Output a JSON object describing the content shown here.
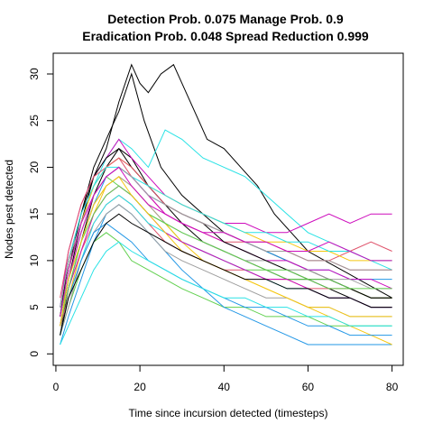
{
  "chart_data": {
    "type": "line",
    "title_line1": "Detection Prob. 0.075 Manage Prob. 0.9",
    "title_line2": "Eradication Prob. 0.048 Spread Reduction 0.999",
    "xlabel": "Time since incursion detected (timesteps)",
    "ylabel": "Nodes pest detected",
    "xlim": [
      1,
      80
    ],
    "ylim": [
      0,
      31
    ],
    "xticks": [
      0,
      20,
      40,
      60,
      80
    ],
    "yticks": [
      0,
      5,
      10,
      15,
      20,
      25,
      30
    ],
    "grid": false,
    "legend": "none",
    "palette": [
      "#000000",
      "#DF536B",
      "#61D04F",
      "#2297E6",
      "#28E2E5",
      "#CD0BBC",
      "#F5C710",
      "#9E9E9E"
    ],
    "series": [
      {
        "color": "#000000",
        "x": [
          1,
          3,
          6,
          9,
          12,
          15,
          18,
          20,
          22,
          25,
          28,
          30,
          33,
          36,
          40,
          44,
          48,
          52,
          56,
          60,
          64,
          68,
          72,
          76,
          80
        ],
        "y": [
          3,
          8,
          14,
          19,
          22,
          27,
          31,
          29,
          28,
          30,
          31,
          29,
          26,
          23,
          22,
          20,
          18,
          15,
          13,
          11,
          10,
          9,
          8,
          7,
          6
        ]
      },
      {
        "color": "#000000",
        "x": [
          1,
          3,
          6,
          9,
          12,
          15,
          18,
          21,
          25,
          30,
          35,
          40,
          45,
          50,
          55,
          60,
          65,
          70,
          75,
          80
        ],
        "y": [
          4,
          9,
          15,
          20,
          23,
          26,
          30,
          25,
          20,
          17,
          15,
          13,
          12,
          11,
          10,
          9,
          8,
          7,
          6,
          6
        ]
      },
      {
        "color": "#000000",
        "x": [
          1,
          3,
          6,
          9,
          12,
          15,
          18,
          22,
          26,
          30,
          35,
          40,
          45,
          50,
          55,
          60,
          65,
          70,
          75,
          80
        ],
        "y": [
          2,
          7,
          12,
          17,
          20,
          22,
          21,
          18,
          16,
          14,
          12,
          11,
          10,
          9,
          8,
          8,
          7,
          6,
          5,
          5
        ]
      },
      {
        "color": "#DF536B",
        "x": [
          1,
          3,
          6,
          9,
          12,
          15,
          18,
          22,
          26,
          30,
          35,
          40,
          45,
          50,
          55,
          60,
          65,
          70,
          75,
          80
        ],
        "y": [
          5,
          10,
          14,
          18,
          20,
          21,
          19,
          17,
          15,
          14,
          13,
          12,
          12,
          11,
          11,
          10,
          10,
          11,
          12,
          11
        ]
      },
      {
        "color": "#DF536B",
        "x": [
          1,
          3,
          6,
          9,
          12,
          15,
          18,
          22,
          26,
          30,
          35,
          40,
          45,
          50,
          55,
          60,
          65,
          70,
          75,
          80
        ],
        "y": [
          3,
          6,
          11,
          14,
          16,
          17,
          16,
          14,
          12,
          11,
          10,
          9,
          9,
          8,
          8,
          7,
          7,
          7,
          6,
          6
        ]
      },
      {
        "color": "#61D04F",
        "x": [
          1,
          3,
          6,
          9,
          12,
          15,
          18,
          22,
          26,
          30,
          35,
          40,
          45,
          50,
          55,
          60,
          65,
          70,
          75,
          80
        ],
        "y": [
          2,
          5,
          9,
          12,
          13,
          12,
          10,
          9,
          8,
          7,
          6,
          5,
          5,
          4,
          4,
          4,
          3,
          3,
          3,
          3
        ]
      },
      {
        "color": "#61D04F",
        "x": [
          1,
          3,
          6,
          9,
          12,
          15,
          18,
          22,
          26,
          30,
          35,
          40,
          45,
          50,
          55,
          60,
          65,
          70,
          75,
          80
        ],
        "y": [
          4,
          8,
          13,
          17,
          19,
          18,
          17,
          15,
          14,
          12,
          11,
          10,
          9,
          9,
          8,
          8,
          7,
          7,
          6,
          6
        ]
      },
      {
        "color": "#2297E6",
        "x": [
          1,
          3,
          6,
          9,
          12,
          15,
          18,
          22,
          26,
          30,
          35,
          40,
          45,
          50,
          55,
          60,
          65,
          70,
          75,
          80
        ],
        "y": [
          1,
          4,
          8,
          12,
          15,
          16,
          15,
          13,
          11,
          9,
          7,
          5,
          4,
          3,
          2,
          1,
          1,
          1,
          1,
          1
        ]
      },
      {
        "color": "#2297E6",
        "x": [
          1,
          3,
          6,
          9,
          12,
          15,
          18,
          22,
          26,
          30,
          35,
          40,
          45,
          50,
          55,
          60,
          65,
          70,
          75,
          80
        ],
        "y": [
          3,
          7,
          12,
          16,
          19,
          20,
          19,
          17,
          16,
          15,
          14,
          13,
          12,
          11,
          10,
          9,
          9,
          8,
          8,
          8
        ]
      },
      {
        "color": "#28E2E5",
        "x": [
          1,
          3,
          6,
          9,
          12,
          15,
          18,
          22,
          26,
          30,
          35,
          40,
          45,
          50,
          55,
          60,
          65,
          70,
          75,
          80
        ],
        "y": [
          4,
          9,
          14,
          18,
          21,
          23,
          22,
          20,
          24,
          23,
          21,
          20,
          19,
          17,
          15,
          13,
          12,
          11,
          10,
          9
        ]
      },
      {
        "color": "#28E2E5",
        "x": [
          1,
          3,
          6,
          9,
          12,
          15,
          18,
          22,
          26,
          30,
          35,
          40,
          45,
          50,
          55,
          60,
          65,
          70,
          75,
          80
        ],
        "y": [
          2,
          6,
          10,
          14,
          16,
          17,
          16,
          14,
          13,
          12,
          11,
          10,
          9,
          8,
          7,
          7,
          6,
          6,
          5,
          5
        ]
      },
      {
        "color": "#CD0BBC",
        "x": [
          1,
          3,
          6,
          9,
          12,
          15,
          18,
          22,
          26,
          30,
          35,
          40,
          45,
          50,
          55,
          60,
          65,
          70,
          75,
          80
        ],
        "y": [
          5,
          11,
          16,
          19,
          21,
          23,
          21,
          19,
          17,
          16,
          15,
          14,
          14,
          13,
          13,
          14,
          15,
          14,
          15,
          15
        ]
      },
      {
        "color": "#CD0BBC",
        "x": [
          1,
          3,
          6,
          9,
          12,
          15,
          18,
          22,
          26,
          30,
          35,
          40,
          45,
          50,
          55,
          60,
          65,
          70,
          75,
          80
        ],
        "y": [
          3,
          8,
          13,
          17,
          19,
          20,
          19,
          17,
          15,
          14,
          13,
          12,
          11,
          10,
          10,
          9,
          9,
          8,
          8,
          7
        ]
      },
      {
        "color": "#F5C710",
        "x": [
          1,
          3,
          6,
          9,
          12,
          15,
          18,
          22,
          26,
          30,
          35,
          40,
          45,
          50,
          55,
          60,
          65,
          70,
          75,
          80
        ],
        "y": [
          2,
          6,
          11,
          15,
          18,
          19,
          18,
          16,
          14,
          12,
          10,
          9,
          8,
          7,
          6,
          5,
          4,
          3,
          2,
          1
        ]
      },
      {
        "color": "#F5C710",
        "x": [
          1,
          3,
          6,
          9,
          12,
          15,
          18,
          22,
          26,
          30,
          35,
          40,
          45,
          50,
          55,
          60,
          65,
          70,
          75,
          80
        ],
        "y": [
          4,
          9,
          14,
          18,
          20,
          21,
          20,
          18,
          17,
          16,
          15,
          14,
          13,
          12,
          12,
          11,
          11,
          10,
          10,
          10
        ]
      },
      {
        "color": "#9E9E9E",
        "x": [
          1,
          3,
          6,
          9,
          12,
          15,
          18,
          22,
          26,
          30,
          35,
          40,
          45,
          50,
          55,
          60,
          65,
          70,
          75,
          80
        ],
        "y": [
          3,
          7,
          12,
          16,
          18,
          19,
          18,
          16,
          14,
          13,
          12,
          11,
          10,
          10,
          9,
          9,
          8,
          8,
          7,
          7
        ]
      },
      {
        "color": "#9E9E9E",
        "x": [
          1,
          3,
          6,
          9,
          12,
          15,
          18,
          22,
          26,
          30,
          35,
          40,
          45,
          50,
          55,
          60,
          65,
          70,
          75,
          80
        ],
        "y": [
          2,
          5,
          10,
          13,
          15,
          16,
          15,
          13,
          11,
          10,
          9,
          8,
          7,
          6,
          6,
          5,
          5,
          4,
          4,
          4
        ]
      },
      {
        "color": "#000000",
        "x": [
          1,
          3,
          6,
          9,
          12,
          15,
          18,
          22,
          26,
          30,
          35,
          40,
          45,
          50,
          55,
          60,
          65,
          70,
          75,
          80
        ],
        "y": [
          4,
          10,
          15,
          19,
          21,
          22,
          20,
          18,
          16,
          15,
          14,
          12,
          11,
          10,
          9,
          8,
          8,
          7,
          6,
          6
        ]
      },
      {
        "color": "#DF536B",
        "x": [
          1,
          3,
          6,
          9,
          12,
          15,
          18,
          22,
          26,
          30,
          35,
          40,
          45,
          50,
          55,
          60,
          65,
          70,
          75,
          80
        ],
        "y": [
          6,
          11,
          16,
          19,
          20,
          21,
          20,
          18,
          16,
          15,
          14,
          13,
          12,
          12,
          11,
          10,
          10,
          9,
          9,
          9
        ]
      },
      {
        "color": "#2297E6",
        "x": [
          1,
          3,
          6,
          9,
          12,
          15,
          18,
          22,
          26,
          30,
          35,
          40,
          45,
          50,
          55,
          60,
          65,
          70,
          75,
          80
        ],
        "y": [
          2,
          6,
          10,
          13,
          14,
          13,
          12,
          10,
          9,
          8,
          7,
          6,
          5,
          5,
          4,
          3,
          3,
          2,
          2,
          2
        ]
      },
      {
        "color": "#28E2E5",
        "x": [
          1,
          3,
          6,
          9,
          12,
          15,
          18,
          22,
          26,
          30,
          35,
          40,
          45,
          50,
          55,
          60,
          65,
          70,
          75,
          80
        ],
        "y": [
          5,
          10,
          15,
          18,
          20,
          20,
          19,
          18,
          17,
          16,
          15,
          14,
          13,
          13,
          12,
          12,
          11,
          11,
          10,
          10
        ]
      },
      {
        "color": "#CD0BBC",
        "x": [
          1,
          3,
          6,
          9,
          12,
          15,
          18,
          22,
          26,
          30,
          35,
          40,
          45,
          50,
          55,
          60,
          65,
          70,
          75,
          80
        ],
        "y": [
          3,
          7,
          11,
          15,
          17,
          18,
          17,
          15,
          13,
          12,
          11,
          10,
          9,
          8,
          8,
          7,
          6,
          6,
          5,
          5
        ]
      },
      {
        "color": "#61D04F",
        "x": [
          1,
          3,
          6,
          9,
          12,
          15,
          18,
          22,
          26,
          30,
          35,
          40,
          45,
          50,
          55,
          60,
          65,
          70,
          75,
          80
        ],
        "y": [
          3,
          7,
          12,
          15,
          17,
          18,
          17,
          15,
          14,
          13,
          12,
          11,
          10,
          9,
          9,
          8,
          8,
          7,
          7,
          7
        ]
      },
      {
        "color": "#F5C710",
        "x": [
          1,
          3,
          6,
          9,
          12,
          15,
          18,
          22,
          26,
          30,
          35,
          40,
          45,
          50,
          55,
          60,
          65,
          70,
          75,
          80
        ],
        "y": [
          3,
          8,
          12,
          16,
          18,
          19,
          17,
          15,
          13,
          11,
          10,
          9,
          8,
          7,
          6,
          5,
          5,
          4,
          4,
          4
        ]
      },
      {
        "color": "#9E9E9E",
        "x": [
          1,
          3,
          6,
          9,
          12,
          15,
          18,
          22,
          26,
          30,
          35,
          40,
          45,
          50,
          55,
          60,
          65,
          70,
          75,
          80
        ],
        "y": [
          5,
          10,
          14,
          17,
          19,
          20,
          19,
          17,
          16,
          15,
          14,
          13,
          12,
          11,
          11,
          10,
          10,
          9,
          9,
          9
        ]
      },
      {
        "color": "#000000",
        "x": [
          1,
          3,
          6,
          9,
          12,
          15,
          18,
          22,
          26,
          30,
          35,
          40,
          45,
          50,
          55,
          60,
          65,
          70,
          75,
          80
        ],
        "y": [
          2,
          6,
          9,
          12,
          14,
          15,
          14,
          13,
          12,
          11,
          10,
          9,
          8,
          8,
          7,
          7,
          6,
          6,
          5,
          5
        ]
      },
      {
        "color": "#28E2E5",
        "x": [
          1,
          3,
          6,
          9,
          12,
          15,
          18,
          22,
          26,
          30,
          35,
          40,
          45,
          50,
          55,
          60,
          65,
          70,
          75,
          80
        ],
        "y": [
          1,
          3,
          6,
          9,
          11,
          12,
          11,
          10,
          9,
          8,
          7,
          6,
          6,
          5,
          5,
          4,
          4,
          3,
          3,
          3
        ]
      },
      {
        "color": "#CD0BBC",
        "x": [
          1,
          3,
          6,
          9,
          12,
          15,
          18,
          22,
          26,
          30,
          35,
          40,
          45,
          50,
          55,
          60,
          65,
          70,
          75,
          80
        ],
        "y": [
          4,
          9,
          14,
          17,
          19,
          20,
          18,
          16,
          15,
          14,
          13,
          13,
          12,
          12,
          11,
          11,
          12,
          11,
          10,
          10
        ]
      }
    ]
  }
}
